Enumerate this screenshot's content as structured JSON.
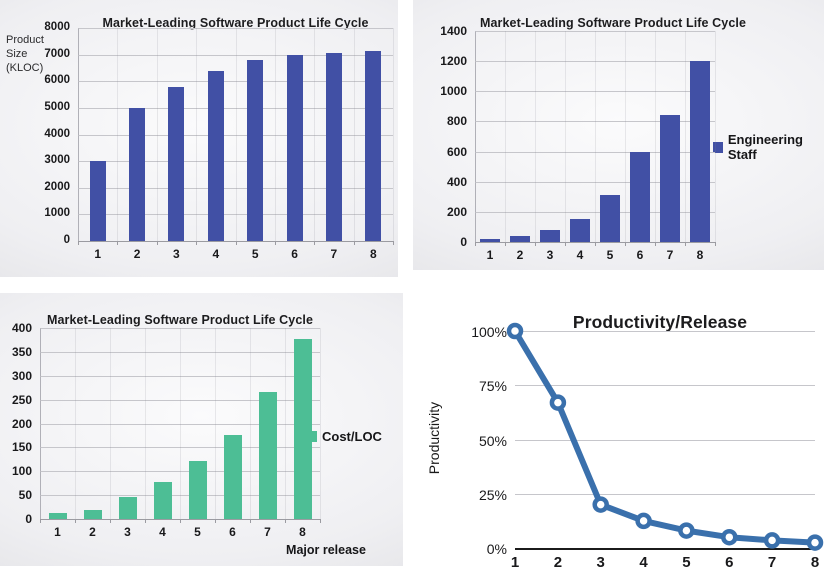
{
  "page": {
    "background": "#ffffff"
  },
  "chart_data": [
    {
      "type": "bar",
      "title": "Market-Leading Software Product Life Cycle",
      "ylabel": "Product\nSize\n(KLOC)",
      "xlabel": "",
      "legend": null,
      "categories": [
        "1",
        "2",
        "3",
        "4",
        "5",
        "6",
        "7",
        "8"
      ],
      "values": [
        3000,
        5000,
        5800,
        6400,
        6800,
        7000,
        7080,
        7150
      ],
      "yticks": [
        "8000",
        "7000",
        "6000",
        "5000",
        "4000",
        "3000",
        "2000",
        "1000",
        "0"
      ],
      "ylim": [
        0,
        8000
      ],
      "color": "#4150A5",
      "grid": true,
      "legend_position": null
    },
    {
      "type": "bar",
      "title": "Market-Leading Software Product Life Cycle",
      "ylabel": "",
      "xlabel": "",
      "legend": "Engineering Staff",
      "categories": [
        "1",
        "2",
        "3",
        "4",
        "5",
        "6",
        "7",
        "8"
      ],
      "values": [
        20,
        40,
        80,
        155,
        310,
        600,
        845,
        1200
      ],
      "yticks": [
        "1400",
        "1200",
        "1000",
        "800",
        "600",
        "400",
        "200",
        "0"
      ],
      "ylim": [
        0,
        1400
      ],
      "color": "#4150A5",
      "grid": true,
      "legend_position": "right"
    },
    {
      "type": "bar",
      "title": "Market-Leading Software Product Life Cycle",
      "ylabel": "",
      "xlabel": "Major release",
      "legend": "Cost/LOC",
      "categories": [
        "1",
        "2",
        "3",
        "4",
        "5",
        "6",
        "7",
        "8"
      ],
      "values": [
        12,
        19,
        47,
        78,
        122,
        175,
        266,
        378
      ],
      "yticks": [
        "400",
        "350",
        "300",
        "250",
        "200",
        "150",
        "100",
        "50",
        "0"
      ],
      "ylim": [
        0,
        400
      ],
      "color": "#4DBE95",
      "grid": true,
      "legend_position": "right"
    },
    {
      "type": "line",
      "title": "Productivity/Release",
      "ylabel": "Productivity",
      "xlabel": "",
      "legend": null,
      "categories": [
        "1",
        "2",
        "3",
        "4",
        "5",
        "6",
        "7",
        "8"
      ],
      "values": [
        100,
        67,
        20,
        12.5,
        8,
        5,
        3.5,
        2.5
      ],
      "yticks": [
        "100%",
        "75%",
        "50%",
        "25%",
        "0%"
      ],
      "ylim": [
        0,
        100
      ],
      "color": "#3A70AC",
      "marker": "open-circle",
      "grid": true,
      "legend_position": null
    }
  ]
}
